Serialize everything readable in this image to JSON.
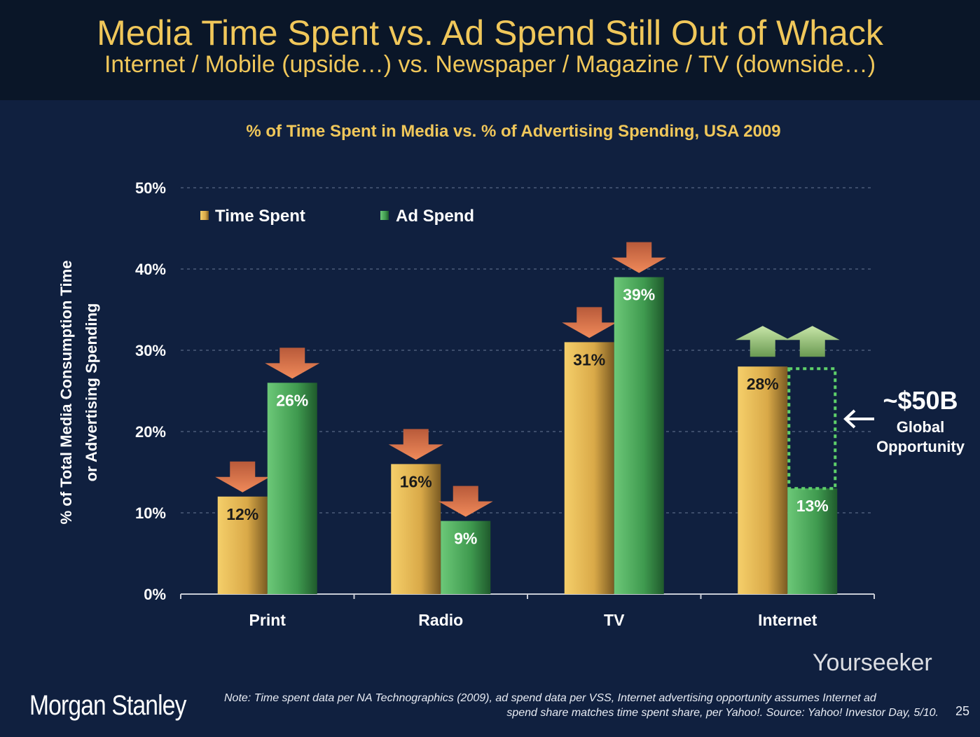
{
  "header": {
    "title": "Media Time Spent vs. Ad Spend Still Out of Whack",
    "subtitle": "Internet / Mobile (upside…) vs. Newspaper / Magazine / TV (downside…)"
  },
  "chart_data": {
    "type": "bar",
    "title": "% of Time Spent in Media vs. % of Advertising Spending, USA 2009",
    "ylabel_line1": "% of Total Media Consumption Time",
    "ylabel_line2": "or Advertising Spending",
    "xlabel": "",
    "ylim": [
      0,
      50
    ],
    "yticks": [
      "0%",
      "10%",
      "20%",
      "30%",
      "40%",
      "50%"
    ],
    "grid": true,
    "legend_position": "top-left",
    "categories": [
      "Print",
      "Radio",
      "TV",
      "Internet"
    ],
    "series": [
      {
        "name": "Time Spent",
        "values": [
          12,
          16,
          31,
          28
        ],
        "labels": [
          "12%",
          "16%",
          "31%",
          "28%"
        ],
        "color": "#e8b94f",
        "trend": [
          "down",
          "down",
          "down",
          "up"
        ]
      },
      {
        "name": "Ad Spend",
        "values": [
          26,
          9,
          39,
          13
        ],
        "labels": [
          "26%",
          "9%",
          "39%",
          "13%"
        ],
        "color": "#4caf5c",
        "trend": [
          "down",
          "down",
          "down",
          "up"
        ]
      }
    ],
    "annotation": {
      "target_value": 28,
      "amount": "~$50B",
      "line1": "Global",
      "line2": "Opportunity"
    },
    "colors": {
      "down_arrow": "#e0704a",
      "up_arrow": "#9cc97a",
      "title": "#f0c75a"
    }
  },
  "footer": {
    "logo": "Morgan Stanley",
    "note_line1": "Note: Time spent data per NA Technographics (2009), ad spend data per VSS, Internet advertising opportunity assumes Internet ad",
    "note_line2": "spend share matches time spent share, per Yahoo!. Source: Yahoo! Investor Day, 5/10.",
    "page_number": "25",
    "watermark": "Yourseeker"
  }
}
